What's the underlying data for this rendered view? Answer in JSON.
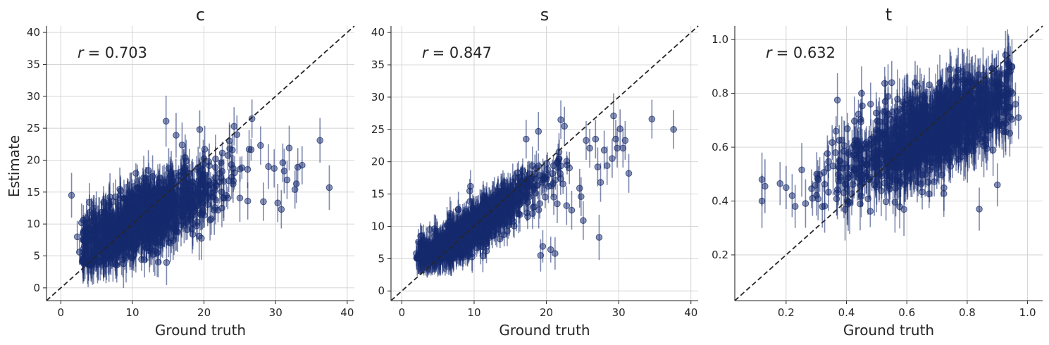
{
  "figure": {
    "ylabel": "Estimate",
    "xlabel": "Ground truth",
    "marker_color": "#162a6e",
    "diagonal_color": "#262626"
  },
  "chart_data": [
    {
      "type": "scatter",
      "title": "c",
      "r_symbol": "r",
      "r_value": "= 0.703",
      "xlim": [
        -2,
        41
      ],
      "ylim": [
        -2,
        41
      ],
      "xticks": [
        0,
        10,
        20,
        30,
        40
      ],
      "yticks": [
        0,
        5,
        10,
        15,
        20,
        25,
        30,
        35,
        40
      ],
      "xtick_labels": [
        "0",
        "10",
        "20",
        "30",
        "40"
      ],
      "ytick_labels": [
        "0",
        "5",
        "10",
        "15",
        "20",
        "25",
        "30",
        "35",
        "40"
      ],
      "cloud": {
        "x_min": 3,
        "x_max": 27,
        "x_mode": 11,
        "slope": 0.55,
        "intercept": 4.5,
        "noise": 2.6,
        "err": 2.6,
        "n": 1200,
        "y_floor": 3.5
      },
      "outliers": [
        {
          "x": 1.5,
          "y": 14.5,
          "e": 3.5
        },
        {
          "x": 2.3,
          "y": 8.0,
          "e": 2.5
        },
        {
          "x": 2.6,
          "y": 5.6,
          "e": 2.0
        },
        {
          "x": 2.9,
          "y": 10.2,
          "e": 3.0
        },
        {
          "x": 3.2,
          "y": 4.1,
          "e": 1.5
        },
        {
          "x": 4.0,
          "y": 13.4,
          "e": 3.0
        },
        {
          "x": 14.7,
          "y": 26.1,
          "e": 4.0
        },
        {
          "x": 16.1,
          "y": 23.9,
          "e": 3.5
        },
        {
          "x": 19.4,
          "y": 24.8,
          "e": 3.0
        },
        {
          "x": 24.2,
          "y": 25.3,
          "e": 3.0
        },
        {
          "x": 24.6,
          "y": 24.0,
          "e": 3.0
        },
        {
          "x": 26.7,
          "y": 26.5,
          "e": 3.0
        },
        {
          "x": 26.3,
          "y": 21.7,
          "e": 3.0
        },
        {
          "x": 27.9,
          "y": 22.3,
          "e": 3.0
        },
        {
          "x": 28.3,
          "y": 13.5,
          "e": 3.0
        },
        {
          "x": 29.0,
          "y": 19.0,
          "e": 3.5
        },
        {
          "x": 29.8,
          "y": 18.7,
          "e": 3.0
        },
        {
          "x": 30.3,
          "y": 13.3,
          "e": 3.0
        },
        {
          "x": 30.8,
          "y": 12.3,
          "e": 3.0
        },
        {
          "x": 31.0,
          "y": 19.6,
          "e": 3.0
        },
        {
          "x": 31.2,
          "y": 18.3,
          "e": 3.5
        },
        {
          "x": 31.6,
          "y": 16.9,
          "e": 3.0
        },
        {
          "x": 31.9,
          "y": 21.9,
          "e": 3.5
        },
        {
          "x": 33.1,
          "y": 18.9,
          "e": 3.0
        },
        {
          "x": 32.7,
          "y": 15.4,
          "e": 3.0
        },
        {
          "x": 32.9,
          "y": 16.3,
          "e": 3.0
        },
        {
          "x": 33.7,
          "y": 19.2,
          "e": 3.0
        },
        {
          "x": 36.2,
          "y": 23.1,
          "e": 3.5
        },
        {
          "x": 37.5,
          "y": 15.7,
          "e": 3.5
        },
        {
          "x": 21.0,
          "y": 10.8,
          "e": 2.5
        },
        {
          "x": 19.5,
          "y": 11.5,
          "e": 2.5
        },
        {
          "x": 22.5,
          "y": 12.5,
          "e": 3.0
        }
      ]
    },
    {
      "type": "scatter",
      "title": "s",
      "r_symbol": "r",
      "r_value": "= 0.847",
      "xlim": [
        -1.5,
        41
      ],
      "ylim": [
        -1.5,
        41
      ],
      "xticks": [
        0,
        10,
        20,
        30,
        40
      ],
      "yticks": [
        0,
        5,
        10,
        15,
        20,
        25,
        30,
        35,
        40
      ],
      "xtick_labels": [
        "0",
        "10",
        "20",
        "30",
        "40"
      ],
      "ytick_labels": [
        "0",
        "5",
        "10",
        "15",
        "20",
        "25",
        "30",
        "35",
        "40"
      ],
      "cloud": {
        "x_min": 2,
        "x_max": 24,
        "x_mode": 9,
        "slope": 0.78,
        "intercept": 2.0,
        "noise": 1.7,
        "err": 2.0,
        "n": 1200,
        "y_floor": 5.0
      },
      "outliers": [
        {
          "x": 2.0,
          "y": 5.8,
          "e": 2.0
        },
        {
          "x": 2.3,
          "y": 7.6,
          "e": 2.0
        },
        {
          "x": 2.6,
          "y": 8.5,
          "e": 2.0
        },
        {
          "x": 9.5,
          "y": 16.2,
          "e": 2.5
        },
        {
          "x": 17.2,
          "y": 23.5,
          "e": 3.0
        },
        {
          "x": 18.9,
          "y": 24.7,
          "e": 3.0
        },
        {
          "x": 19.2,
          "y": 5.5,
          "e": 2.5
        },
        {
          "x": 19.5,
          "y": 6.9,
          "e": 2.5
        },
        {
          "x": 20.6,
          "y": 6.4,
          "e": 2.0
        },
        {
          "x": 21.2,
          "y": 5.8,
          "e": 2.5
        },
        {
          "x": 22.0,
          "y": 26.5,
          "e": 3.0
        },
        {
          "x": 22.5,
          "y": 25.5,
          "e": 3.0
        },
        {
          "x": 24.6,
          "y": 15.9,
          "e": 3.0
        },
        {
          "x": 24.8,
          "y": 14.6,
          "e": 3.0
        },
        {
          "x": 25.1,
          "y": 10.9,
          "e": 3.0
        },
        {
          "x": 25.5,
          "y": 23.3,
          "e": 3.0
        },
        {
          "x": 26.0,
          "y": 22.1,
          "e": 3.0
        },
        {
          "x": 26.8,
          "y": 23.5,
          "e": 3.0
        },
        {
          "x": 27.1,
          "y": 19.2,
          "e": 3.0
        },
        {
          "x": 27.3,
          "y": 8.3,
          "e": 3.5
        },
        {
          "x": 27.5,
          "y": 16.8,
          "e": 3.0
        },
        {
          "x": 28.0,
          "y": 21.8,
          "e": 3.0
        },
        {
          "x": 28.4,
          "y": 19.4,
          "e": 3.0
        },
        {
          "x": 29.1,
          "y": 20.5,
          "e": 3.0
        },
        {
          "x": 29.3,
          "y": 27.1,
          "e": 3.5
        },
        {
          "x": 29.6,
          "y": 23.5,
          "e": 3.0
        },
        {
          "x": 29.8,
          "y": 22.1,
          "e": 3.0
        },
        {
          "x": 30.2,
          "y": 25.1,
          "e": 3.0
        },
        {
          "x": 30.6,
          "y": 22.1,
          "e": 3.0
        },
        {
          "x": 30.9,
          "y": 23.3,
          "e": 3.0
        },
        {
          "x": 31.4,
          "y": 18.2,
          "e": 3.0
        },
        {
          "x": 34.6,
          "y": 26.6,
          "e": 3.0
        },
        {
          "x": 37.6,
          "y": 25.0,
          "e": 3.0
        },
        {
          "x": 22.8,
          "y": 13.2,
          "e": 3.0
        },
        {
          "x": 21.5,
          "y": 13.5,
          "e": 3.0
        },
        {
          "x": 23.5,
          "y": 12.5,
          "e": 3.0
        }
      ]
    },
    {
      "type": "scatter",
      "title": "t",
      "r_symbol": "r",
      "r_value": "= 0.632",
      "xlim": [
        0.03,
        1.05
      ],
      "ylim": [
        0.03,
        1.05
      ],
      "xticks": [
        0.2,
        0.4,
        0.6,
        0.8,
        1.0
      ],
      "yticks": [
        0.2,
        0.4,
        0.6,
        0.8,
        1.0
      ],
      "xtick_labels": [
        "0.2",
        "0.4",
        "0.6",
        "0.8",
        "1.0"
      ],
      "ytick_labels": [
        "0.2",
        "0.4",
        "0.6",
        "0.8",
        "1.0"
      ],
      "cloud": {
        "x_min": 0.25,
        "x_max": 0.95,
        "x_mode": 0.7,
        "slope": 0.5,
        "intercept": 0.32,
        "noise": 0.075,
        "err": 0.08,
        "n": 1300,
        "y_floor": 0.36
      },
      "outliers": [
        {
          "x": 0.12,
          "y": 0.48,
          "e": 0.1
        },
        {
          "x": 0.12,
          "y": 0.4,
          "e": 0.1
        },
        {
          "x": 0.13,
          "y": 0.455,
          "e": 0.1
        },
        {
          "x": 0.18,
          "y": 0.465,
          "e": 0.08
        },
        {
          "x": 0.2,
          "y": 0.45,
          "e": 0.08
        },
        {
          "x": 0.22,
          "y": 0.42,
          "e": 0.08
        },
        {
          "x": 0.23,
          "y": 0.38,
          "e": 0.08
        },
        {
          "x": 0.37,
          "y": 0.775,
          "e": 0.1
        },
        {
          "x": 0.45,
          "y": 0.8,
          "e": 0.1
        },
        {
          "x": 0.48,
          "y": 0.76,
          "e": 0.08
        },
        {
          "x": 0.55,
          "y": 0.84,
          "e": 0.08
        },
        {
          "x": 0.84,
          "y": 0.37,
          "e": 0.08
        },
        {
          "x": 0.9,
          "y": 0.46,
          "e": 0.08
        },
        {
          "x": 0.97,
          "y": 0.71,
          "e": 0.08
        },
        {
          "x": 0.95,
          "y": 0.8,
          "e": 0.08
        },
        {
          "x": 0.96,
          "y": 0.76,
          "e": 0.08
        }
      ]
    }
  ]
}
